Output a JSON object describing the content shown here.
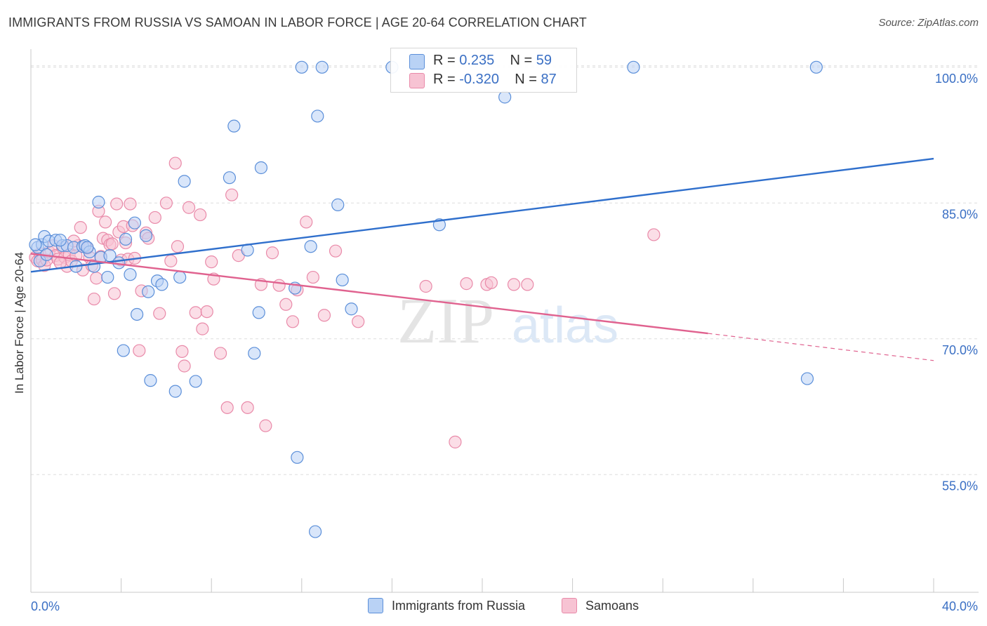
{
  "title": "IMMIGRANTS FROM RUSSIA VS SAMOAN IN LABOR FORCE | AGE 20-64 CORRELATION CHART",
  "source": "Source: ZipAtlas.com",
  "watermark": {
    "zip": "ZIP",
    "atlas": "atlas"
  },
  "colors": {
    "blue_fill": "#b9d2f5",
    "blue_stroke": "#5b8fd9",
    "blue_line": "#2f6fcc",
    "pink_fill": "#f7c3d3",
    "pink_stroke": "#e98aa9",
    "pink_line": "#e0628f",
    "axis_label": "#3a6fc4",
    "grid": "#dedede"
  },
  "legend": {
    "series1": {
      "r_label": "R =",
      "r_value": " 0.235",
      "n_label": "N =",
      "n_value": "59"
    },
    "series2": {
      "r_label": "R =",
      "r_value": "-0.320",
      "n_label": "N =",
      "n_value": "87"
    }
  },
  "chart_data": {
    "type": "scatter",
    "title": "IMMIGRANTS FROM RUSSIA VS SAMOAN IN LABOR FORCE | AGE 20-64 CORRELATION CHART",
    "xlabel": "",
    "ylabel": "In Labor Force | Age 20-64",
    "xlim": [
      0,
      40
    ],
    "ylim": [
      42,
      102
    ],
    "x_tick_labels": [
      "0.0%",
      "40.0%"
    ],
    "y_ticks": [
      55,
      70,
      85,
      100
    ],
    "y_tick_labels": [
      "55.0%",
      "70.0%",
      "85.0%",
      "100.0%"
    ],
    "grid": true,
    "series": [
      {
        "name": "Immigrants from Russia",
        "color": "blue",
        "r": 0.235,
        "n": 59,
        "trend": {
          "x0": 0,
          "y0": 77.4,
          "x1": 40,
          "y1": 89.9
        },
        "points": [
          [
            0.3,
            80.1
          ],
          [
            0.5,
            80.4
          ],
          [
            0.6,
            81.3
          ],
          [
            0.4,
            78.6
          ],
          [
            0.8,
            80.8
          ],
          [
            1.1,
            80.9
          ],
          [
            1.4,
            80.3
          ],
          [
            1.6,
            80.3
          ],
          [
            1.9,
            80.1
          ],
          [
            2.3,
            80.2
          ],
          [
            2.4,
            80.3
          ],
          [
            2.6,
            79.6
          ],
          [
            2.0,
            78.0
          ],
          [
            2.8,
            78.0
          ],
          [
            3.1,
            79.0
          ],
          [
            3.0,
            85.1
          ],
          [
            3.5,
            79.2
          ],
          [
            3.4,
            76.8
          ],
          [
            3.9,
            78.4
          ],
          [
            4.2,
            81.0
          ],
          [
            4.4,
            77.1
          ],
          [
            4.6,
            82.8
          ],
          [
            5.1,
            81.4
          ],
          [
            5.2,
            75.2
          ],
          [
            4.7,
            72.7
          ],
          [
            4.1,
            68.7
          ],
          [
            5.3,
            65.4
          ],
          [
            5.6,
            76.4
          ],
          [
            5.8,
            76.0
          ],
          [
            6.6,
            76.8
          ],
          [
            6.8,
            87.4
          ],
          [
            6.4,
            64.2
          ],
          [
            7.3,
            65.3
          ],
          [
            8.8,
            87.8
          ],
          [
            9.0,
            93.5
          ],
          [
            9.6,
            79.8
          ],
          [
            9.9,
            68.4
          ],
          [
            10.1,
            72.9
          ],
          [
            10.2,
            88.9
          ],
          [
            11.7,
            75.6
          ],
          [
            11.8,
            56.9
          ],
          [
            12.0,
            100.0
          ],
          [
            12.4,
            80.2
          ],
          [
            12.6,
            48.7
          ],
          [
            12.9,
            100.0
          ],
          [
            12.7,
            94.6
          ],
          [
            13.6,
            84.8
          ],
          [
            13.8,
            76.5
          ],
          [
            14.2,
            73.3
          ],
          [
            16.0,
            100.0
          ],
          [
            18.1,
            82.6
          ],
          [
            21.0,
            96.7
          ],
          [
            26.7,
            100.0
          ],
          [
            34.8,
            100.0
          ],
          [
            34.4,
            65.6
          ],
          [
            0.2,
            80.4
          ],
          [
            0.7,
            79.3
          ],
          [
            1.3,
            80.9
          ],
          [
            2.5,
            80.1
          ]
        ]
      },
      {
        "name": "Samoans",
        "color": "pink",
        "r": -0.32,
        "n": 87,
        "trend": {
          "x0": 0,
          "y0": 79.4,
          "x1": 30,
          "y1": 70.6,
          "dash_to_x": 40,
          "dash_to_y": 67.6
        },
        "points": [
          [
            0.2,
            79.0
          ],
          [
            0.3,
            78.6
          ],
          [
            0.4,
            79.4
          ],
          [
            0.5,
            78.7
          ],
          [
            0.6,
            78.1
          ],
          [
            0.7,
            78.7
          ],
          [
            0.8,
            79.6
          ],
          [
            1.0,
            80.3
          ],
          [
            1.1,
            79.2
          ],
          [
            1.2,
            78.8
          ],
          [
            1.4,
            80.1
          ],
          [
            1.5,
            79.0
          ],
          [
            1.6,
            78.0
          ],
          [
            1.7,
            79.3
          ],
          [
            1.8,
            78.6
          ],
          [
            2.0,
            79.2
          ],
          [
            2.1,
            80.3
          ],
          [
            2.2,
            82.3
          ],
          [
            2.3,
            77.6
          ],
          [
            2.5,
            80.0
          ],
          [
            2.6,
            79.0
          ],
          [
            2.8,
            74.4
          ],
          [
            2.9,
            76.7
          ],
          [
            3.1,
            79.1
          ],
          [
            3.2,
            81.1
          ],
          [
            3.3,
            82.9
          ],
          [
            3.4,
            80.9
          ],
          [
            3.5,
            80.4
          ],
          [
            3.6,
            80.5
          ],
          [
            3.7,
            75.0
          ],
          [
            3.8,
            84.9
          ],
          [
            3.9,
            81.8
          ],
          [
            4.0,
            78.7
          ],
          [
            4.1,
            82.4
          ],
          [
            4.3,
            78.8
          ],
          [
            4.4,
            84.9
          ],
          [
            4.5,
            82.5
          ],
          [
            4.6,
            78.9
          ],
          [
            4.8,
            68.7
          ],
          [
            4.9,
            75.3
          ],
          [
            5.1,
            81.7
          ],
          [
            5.2,
            81.1
          ],
          [
            5.5,
            83.4
          ],
          [
            5.7,
            72.8
          ],
          [
            6.0,
            85.0
          ],
          [
            6.2,
            78.6
          ],
          [
            6.4,
            89.4
          ],
          [
            6.5,
            80.2
          ],
          [
            6.7,
            68.6
          ],
          [
            6.8,
            67.0
          ],
          [
            7.0,
            84.5
          ],
          [
            7.3,
            72.9
          ],
          [
            7.5,
            83.7
          ],
          [
            7.6,
            71.1
          ],
          [
            7.8,
            73.0
          ],
          [
            8.0,
            78.5
          ],
          [
            8.1,
            76.6
          ],
          [
            8.4,
            68.4
          ],
          [
            8.7,
            62.4
          ],
          [
            8.9,
            85.9
          ],
          [
            9.2,
            79.2
          ],
          [
            9.6,
            62.4
          ],
          [
            10.2,
            76.0
          ],
          [
            10.4,
            60.4
          ],
          [
            10.7,
            79.5
          ],
          [
            11.0,
            75.9
          ],
          [
            11.3,
            73.8
          ],
          [
            11.6,
            71.9
          ],
          [
            11.8,
            75.4
          ],
          [
            12.2,
            82.9
          ],
          [
            12.5,
            76.8
          ],
          [
            13.0,
            72.6
          ],
          [
            13.5,
            79.7
          ],
          [
            14.5,
            71.9
          ],
          [
            17.5,
            75.8
          ],
          [
            18.8,
            58.6
          ],
          [
            19.3,
            76.1
          ],
          [
            20.2,
            76.0
          ],
          [
            20.4,
            76.2
          ],
          [
            21.4,
            76.0
          ],
          [
            22.0,
            76.0
          ],
          [
            27.6,
            81.5
          ],
          [
            1.9,
            80.8
          ],
          [
            2.7,
            78.1
          ],
          [
            4.2,
            80.6
          ],
          [
            1.3,
            78.4
          ],
          [
            3.0,
            84.1
          ]
        ]
      }
    ]
  },
  "bottom_legend": {
    "series1": "Immigrants from Russia",
    "series2": "Samoans"
  }
}
